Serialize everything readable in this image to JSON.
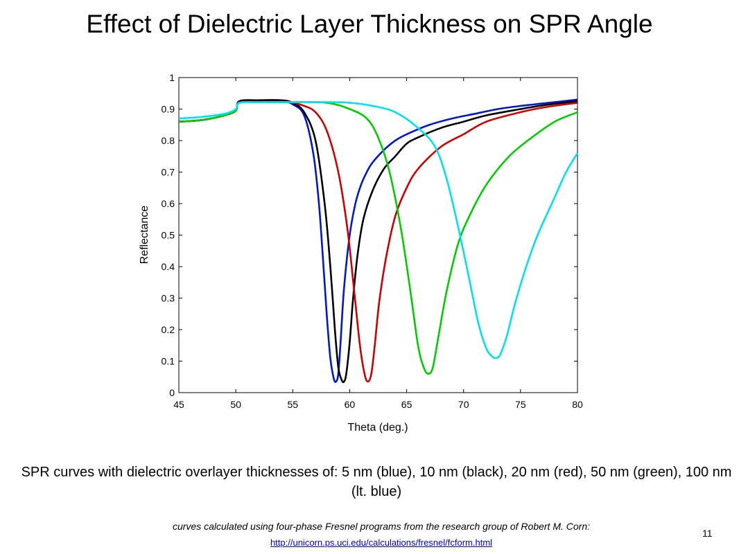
{
  "slide": {
    "title": "Effect of Dielectric Layer Thickness on SPR Angle",
    "caption": "SPR curves with dielectric overlayer thicknesses of: 5 nm (blue), 10 nm (black), 20 nm (red), 50 nm (green), 100 nm (lt. blue)",
    "credit": "curves calculated using four-phase Fresnel programs from the research group of Robert M. Corn:",
    "link": "http://unicorn.ps.uci.edu/calculations/fresnel/fcform.html",
    "page_number": "11"
  },
  "chart_data": {
    "type": "line",
    "title": "",
    "xlabel": "Theta (deg.)",
    "ylabel": "Reflectance",
    "xlim": [
      45,
      80
    ],
    "ylim": [
      0,
      1
    ],
    "x_ticks": [
      "45",
      "50",
      "55",
      "60",
      "65",
      "70",
      "75",
      "80"
    ],
    "y_ticks": [
      "0",
      "0.1",
      "0.2",
      "0.3",
      "0.4",
      "0.5",
      "0.6",
      "0.7",
      "0.8",
      "0.9",
      "1"
    ],
    "grid": false,
    "series": [
      {
        "color": "#0018c8",
        "x": [
          45,
          47,
          49,
          50,
          50.3,
          52,
          54,
          55,
          56,
          56.8,
          57.3,
          57.7,
          58.0,
          58.3,
          58.6,
          58.8,
          59.0,
          59.2,
          59.5,
          60.0,
          60.5,
          61.0,
          61.5,
          62,
          63,
          64,
          65,
          67,
          69,
          71,
          73,
          75,
          77,
          80
        ],
        "y": [
          0.86,
          0.865,
          0.88,
          0.895,
          0.92,
          0.925,
          0.925,
          0.915,
          0.88,
          0.76,
          0.6,
          0.4,
          0.24,
          0.11,
          0.045,
          0.035,
          0.06,
          0.16,
          0.33,
          0.5,
          0.6,
          0.66,
          0.7,
          0.73,
          0.77,
          0.8,
          0.82,
          0.85,
          0.87,
          0.885,
          0.9,
          0.91,
          0.918,
          0.93
        ]
      },
      {
        "color": "#000000",
        "x": [
          45,
          47,
          49,
          50,
          50.3,
          52,
          54,
          55,
          56,
          57,
          57.8,
          58.3,
          58.7,
          59.0,
          59.3,
          59.5,
          59.7,
          60.0,
          60.3,
          60.7,
          61.2,
          62,
          63,
          64,
          65,
          66,
          68,
          70,
          72,
          75,
          77,
          80
        ],
        "y": [
          0.86,
          0.865,
          0.88,
          0.895,
          0.925,
          0.928,
          0.928,
          0.92,
          0.89,
          0.8,
          0.6,
          0.4,
          0.2,
          0.08,
          0.04,
          0.035,
          0.06,
          0.16,
          0.3,
          0.44,
          0.55,
          0.64,
          0.71,
          0.75,
          0.79,
          0.81,
          0.84,
          0.86,
          0.88,
          0.9,
          0.912,
          0.925
        ]
      },
      {
        "color": "#cc0000",
        "x": [
          45,
          47,
          49,
          50,
          50.3,
          52,
          54,
          55,
          56,
          57,
          58,
          59,
          59.8,
          60.4,
          60.9,
          61.3,
          61.6,
          61.9,
          62.2,
          62.6,
          63.2,
          64,
          65,
          66,
          68,
          70,
          72,
          75,
          77,
          80
        ],
        "y": [
          0.86,
          0.865,
          0.88,
          0.895,
          0.92,
          0.922,
          0.922,
          0.92,
          0.91,
          0.89,
          0.83,
          0.7,
          0.52,
          0.32,
          0.15,
          0.06,
          0.035,
          0.06,
          0.15,
          0.29,
          0.43,
          0.56,
          0.65,
          0.71,
          0.78,
          0.82,
          0.86,
          0.89,
          0.905,
          0.92
        ]
      },
      {
        "color": "#00cc00",
        "x": [
          45,
          47,
          49,
          50,
          50.3,
          52,
          55,
          58,
          60,
          61.5,
          62.5,
          63.5,
          64.5,
          65.3,
          66.0,
          66.5,
          66.9,
          67.3,
          67.8,
          68.5,
          69.5,
          70.5,
          72,
          74,
          76,
          78,
          80
        ],
        "y": [
          0.86,
          0.865,
          0.88,
          0.895,
          0.92,
          0.922,
          0.922,
          0.92,
          0.9,
          0.87,
          0.81,
          0.7,
          0.52,
          0.33,
          0.15,
          0.08,
          0.06,
          0.08,
          0.18,
          0.32,
          0.47,
          0.56,
          0.66,
          0.75,
          0.81,
          0.86,
          0.89
        ]
      },
      {
        "color": "#00e0f0",
        "x": [
          45,
          47,
          49,
          50,
          50.3,
          52,
          55,
          58,
          60,
          62,
          64,
          66,
          67.5,
          68.5,
          69.5,
          70.5,
          71.3,
          72.0,
          72.5,
          72.8,
          73.2,
          73.8,
          74.5,
          75.5,
          76.5,
          78,
          79,
          80
        ],
        "y": [
          0.87,
          0.875,
          0.885,
          0.9,
          0.92,
          0.922,
          0.922,
          0.922,
          0.92,
          0.91,
          0.89,
          0.84,
          0.78,
          0.68,
          0.53,
          0.36,
          0.22,
          0.14,
          0.115,
          0.11,
          0.12,
          0.18,
          0.28,
          0.4,
          0.5,
          0.62,
          0.7,
          0.76
        ]
      }
    ]
  }
}
